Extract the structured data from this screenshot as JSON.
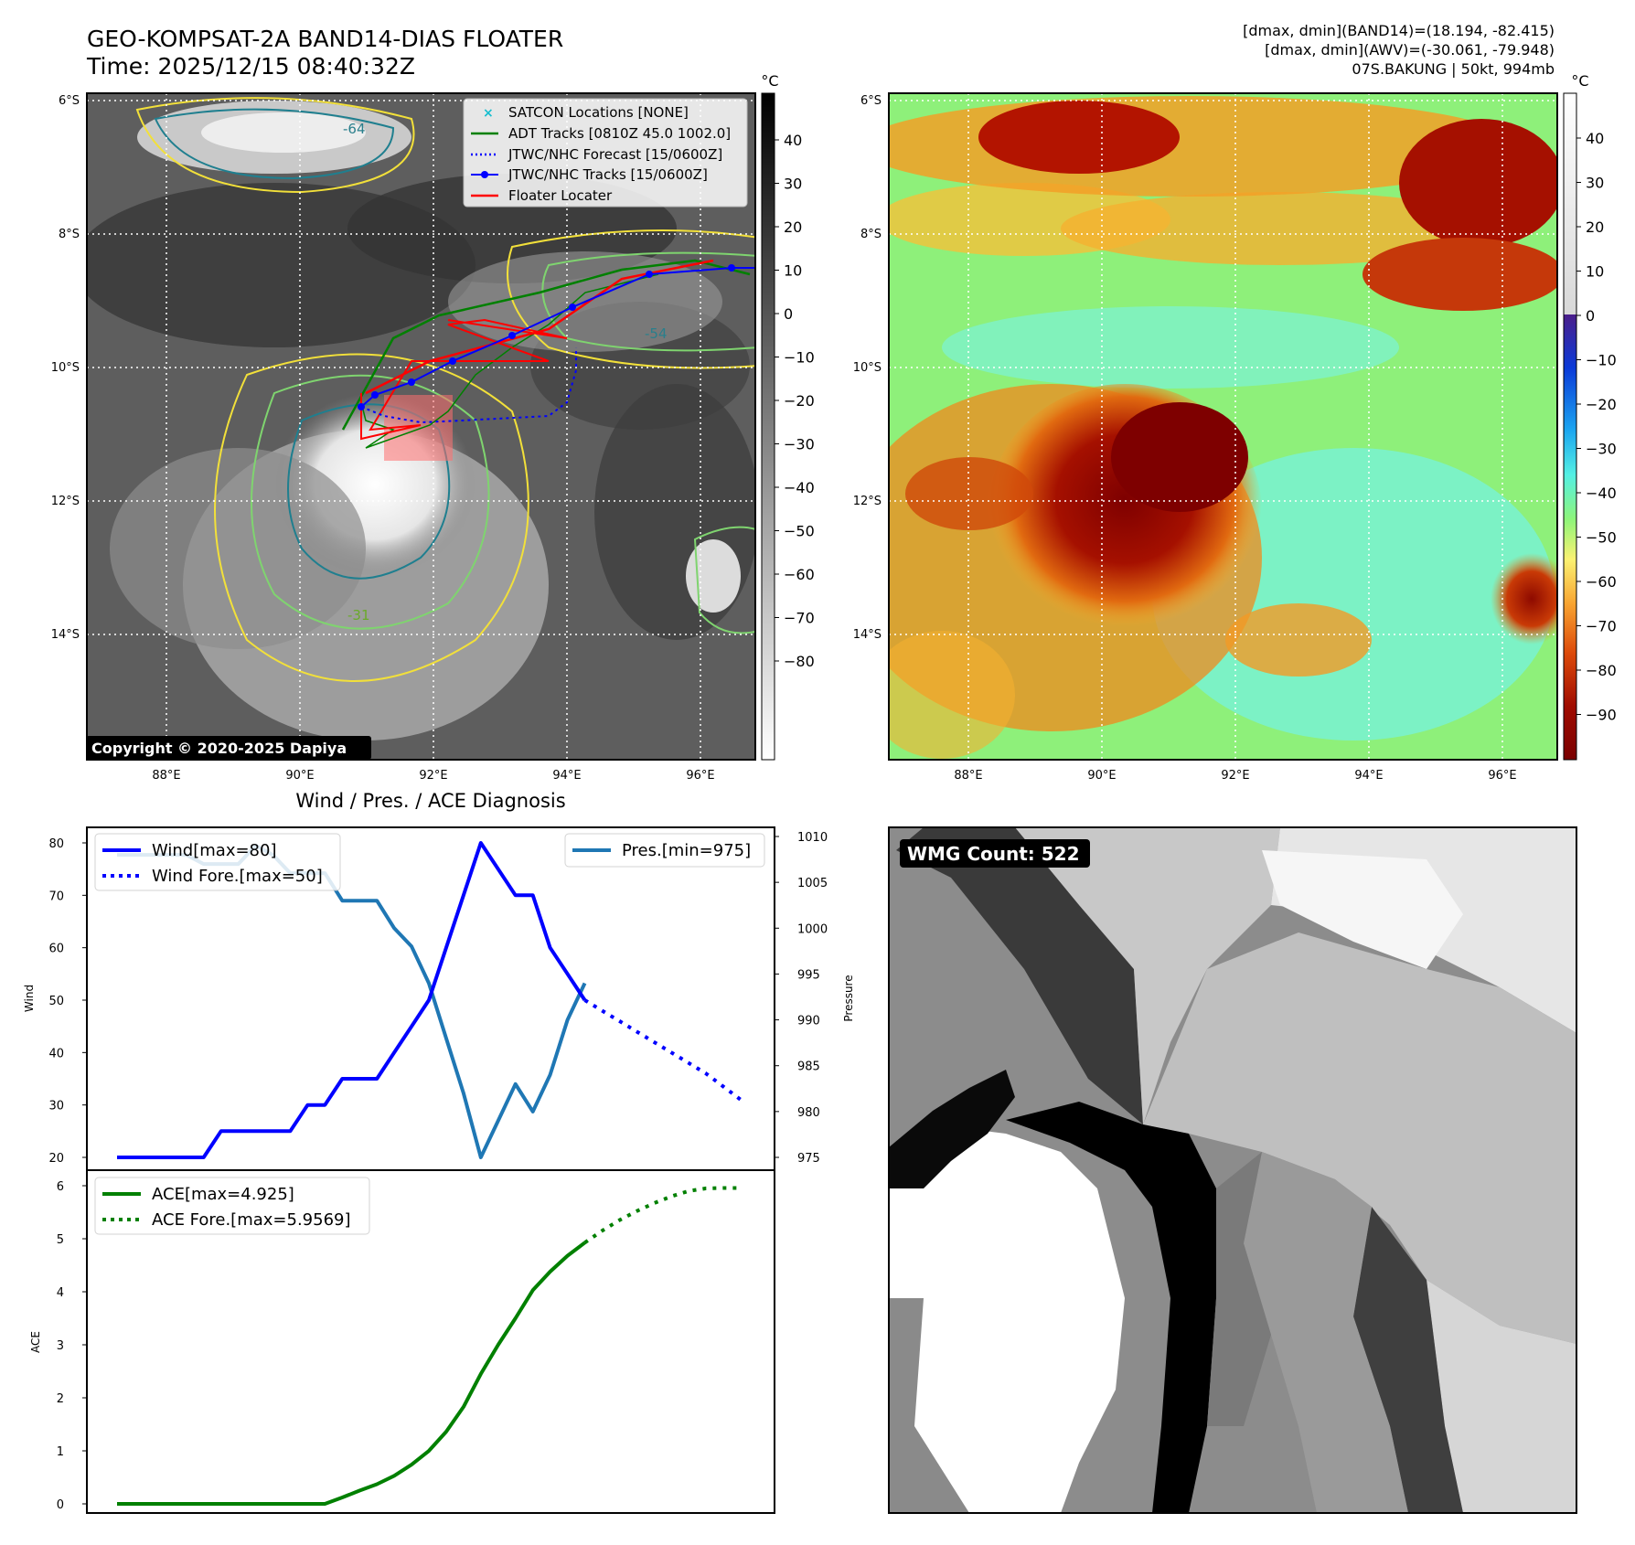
{
  "header": {
    "title_line1": "GEO-KOMPSAT-2A BAND14-DIAS FLOATER",
    "title_line2": "Time: 2025/12/15 08:40:32Z",
    "info_line1": "[dmax, dmin](BAND14)=(18.194, -82.415)",
    "info_line2": "[dmax, dmin](AWV)=(-30.061, -79.948)",
    "info_line3": "07S.BAKUNG | 50kt, 994mb"
  },
  "map_axes": {
    "lat_labels": [
      "6°S",
      "8°S",
      "10°S",
      "12°S",
      "14°S"
    ],
    "lon_labels": [
      "88°E",
      "90°E",
      "92°E",
      "94°E",
      "96°E"
    ]
  },
  "ir_panel": {
    "colorbar_unit": "°C",
    "colorbar_ticks": [
      "40",
      "30",
      "20",
      "10",
      "0",
      "−10",
      "−20",
      "−30",
      "−40",
      "−50",
      "−60",
      "−70",
      "−80"
    ],
    "copyright": "Copyright © 2020-2025 Dapiya",
    "legend": [
      {
        "label": "SATCON Locations [NONE]",
        "color": "#17becf"
      },
      {
        "label": "ADT Tracks [0810Z 45.0 1002.0]",
        "color": "#008000"
      },
      {
        "label": "JTWC/NHC Forecast [15/0600Z]",
        "color": "#0000ff"
      },
      {
        "label": "JTWC/NHC Tracks [15/0600Z]",
        "color": "#0000ff"
      },
      {
        "label": "Floater Locater",
        "color": "#ff0000"
      }
    ],
    "contour_labels": [
      "-64",
      "-54",
      "-31"
    ]
  },
  "awv_panel": {
    "colorbar_unit": "°C",
    "colorbar_ticks": [
      "40",
      "30",
      "20",
      "10",
      "0",
      "−10",
      "−20",
      "−30",
      "−40",
      "−50",
      "−60",
      "−70",
      "−80",
      "−90"
    ]
  },
  "diagnosis": {
    "title": "Wind / Pres. / ACE Diagnosis",
    "wind_axis_label": "Wind",
    "pressure_axis_label": "Pressure",
    "ace_axis_label": "ACE",
    "legend_wind": "Wind[max=80]",
    "legend_wind_fore": "Wind Fore.[max=50]",
    "legend_pres": "Pres.[min=975]",
    "legend_ace": "ACE[max=4.925]",
    "legend_ace_fore": "ACE Fore.[max=5.9569]"
  },
  "wmg_panel": {
    "label": "WMG Count: 522"
  },
  "colors": {
    "wind": "#0000ff",
    "pressure": "#1f77b4",
    "ace": "#008000"
  },
  "chart_data": [
    {
      "type": "line",
      "title": "Wind / Pres. / ACE Diagnosis",
      "ylabel": "Wind",
      "ylim": [
        20,
        80
      ],
      "series": [
        {
          "name": "Wind[max=80]",
          "x": [
            0,
            1,
            2,
            3,
            4,
            5,
            6,
            7,
            8,
            9,
            10,
            11,
            12,
            13,
            14,
            15,
            16,
            17,
            18,
            19,
            20,
            21,
            22,
            23,
            24,
            25,
            26,
            27
          ],
          "values": [
            20,
            20,
            20,
            20,
            20,
            20,
            25,
            25,
            25,
            25,
            25,
            30,
            30,
            35,
            35,
            35,
            40,
            45,
            50,
            60,
            70,
            80,
            75,
            70,
            70,
            60,
            55,
            50
          ]
        },
        {
          "name": "Wind Fore.[max=50]",
          "x": [
            27,
            28,
            29,
            30,
            31,
            32,
            33,
            34,
            35,
            36
          ],
          "values": [
            50,
            48,
            46,
            44,
            42,
            40,
            38,
            36,
            33.5,
            31
          ]
        }
      ]
    },
    {
      "type": "line",
      "ylabel": "Pressure",
      "ylim": [
        975,
        1010
      ],
      "series": [
        {
          "name": "Pres.[min=975]",
          "x": [
            0,
            1,
            2,
            3,
            4,
            5,
            6,
            7,
            8,
            9,
            10,
            11,
            12,
            13,
            14,
            15,
            16,
            17,
            18,
            19,
            20,
            21,
            22,
            23,
            24,
            25,
            26,
            27
          ],
          "values": [
            1008,
            1008,
            1008,
            1008,
            1008,
            1007,
            1007,
            1007,
            1009,
            1008,
            1006,
            1006,
            1006,
            1003,
            1003,
            1003,
            1000,
            998,
            994,
            988,
            982,
            975,
            979,
            983,
            980,
            984,
            990,
            994
          ]
        }
      ]
    },
    {
      "type": "line",
      "ylabel": "ACE",
      "ylim": [
        0,
        6
      ],
      "series": [
        {
          "name": "ACE[max=4.925]",
          "x": [
            0,
            1,
            2,
            3,
            4,
            5,
            6,
            7,
            8,
            9,
            10,
            11,
            12,
            13,
            14,
            15,
            16,
            17,
            18,
            19,
            20,
            21,
            22,
            23,
            24,
            25,
            26,
            27
          ],
          "values": [
            0,
            0,
            0,
            0,
            0,
            0,
            0,
            0,
            0,
            0,
            0,
            0,
            0,
            0.12,
            0.25,
            0.37,
            0.53,
            0.74,
            1.0,
            1.36,
            1.83,
            2.45,
            3.0,
            3.5,
            4.03,
            4.38,
            4.68,
            4.925
          ]
        },
        {
          "name": "ACE Fore.[max=5.9569]",
          "x": [
            27,
            28,
            29,
            30,
            31,
            32,
            33,
            34,
            35,
            36
          ],
          "values": [
            4.925,
            5.15,
            5.35,
            5.52,
            5.67,
            5.8,
            5.9,
            5.95,
            5.957,
            5.957
          ]
        }
      ]
    }
  ]
}
